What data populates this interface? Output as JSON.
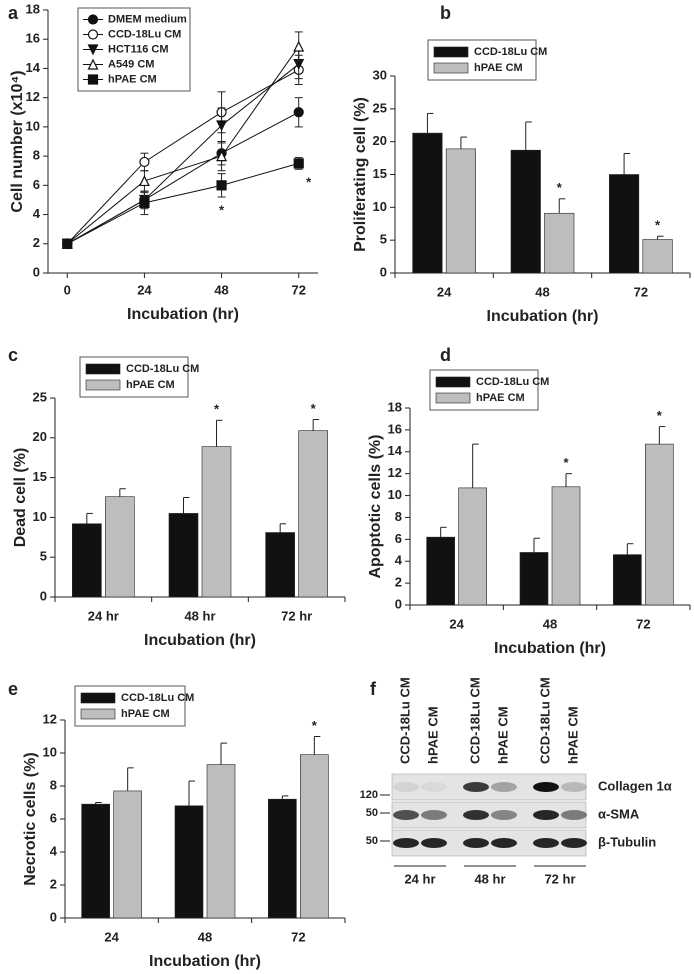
{
  "chart_data": [
    {
      "panel": "a",
      "type": "line",
      "x_label": "Incubation (hr)",
      "y_label": "Cell number (x10⁴)",
      "x": [
        0,
        24,
        48,
        72
      ],
      "xlim": [
        -6,
        78
      ],
      "xticks": [
        0,
        24,
        48,
        72
      ],
      "ylim": [
        0,
        18
      ],
      "yticks": [
        0,
        2,
        4,
        6,
        8,
        10,
        12,
        14,
        16,
        18
      ],
      "series": [
        {
          "name": "DMEM medium",
          "color": "#111111",
          "marker": "circle",
          "values": [
            2,
            5.0,
            8.2,
            11.0
          ],
          "errors": [
            0.2,
            0.5,
            0.8,
            1.0
          ],
          "significance": [
            null,
            null,
            null,
            null
          ]
        },
        {
          "name": "CCD-18Lu CM",
          "color": "#111111",
          "marker": "circle-open",
          "values": [
            2,
            7.6,
            11.0,
            13.9
          ],
          "errors": [
            0.2,
            0.6,
            1.4,
            1.0
          ],
          "significance": [
            null,
            null,
            null,
            null
          ]
        },
        {
          "name": "HCT116 CM",
          "color": "#111111",
          "marker": "triangle-down",
          "values": [
            2,
            5.0,
            10.1,
            14.3
          ],
          "errors": [
            0.2,
            0.6,
            1.2,
            1.0
          ],
          "significance": [
            null,
            null,
            null,
            null
          ]
        },
        {
          "name": "A549 CM",
          "color": "#111111",
          "marker": "triangle-open",
          "values": [
            2,
            6.3,
            8.0,
            15.5
          ],
          "errors": [
            0.2,
            0.7,
            1.0,
            1.0
          ],
          "significance": [
            null,
            null,
            null,
            null
          ]
        },
        {
          "name": "hPAE CM",
          "color": "#111111",
          "marker": "square",
          "values": [
            2,
            4.8,
            6.0,
            7.5
          ],
          "errors": [
            0.2,
            0.8,
            0.8,
            0.4
          ],
          "significance": [
            null,
            null,
            "*",
            "*"
          ]
        }
      ]
    },
    {
      "panel": "b",
      "type": "bar",
      "x_label": "Incubation (hr)",
      "y_label": "Proliferating cell (%)",
      "categories": [
        "24",
        "48",
        "72"
      ],
      "ylim": [
        0,
        30
      ],
      "yticks": [
        0,
        5,
        10,
        15,
        20,
        25,
        30
      ],
      "series": [
        {
          "name": "CCD-18Lu CM",
          "color": "#111111",
          "values": [
            21.3,
            18.7,
            15.0
          ],
          "errors": [
            3.0,
            4.3,
            3.2
          ],
          "significance": [
            null,
            null,
            null
          ]
        },
        {
          "name": "hPAE CM",
          "color": "#bdbdbd",
          "values": [
            18.9,
            9.1,
            5.1
          ],
          "errors": [
            1.8,
            2.2,
            0.5
          ],
          "significance": [
            null,
            "*",
            "*"
          ]
        }
      ]
    },
    {
      "panel": "c",
      "type": "bar",
      "x_label": "Incubation (hr)",
      "y_label": "Dead cell (%)",
      "categories": [
        "24 hr",
        "48 hr",
        "72 hr"
      ],
      "ylim": [
        0,
        25
      ],
      "yticks": [
        0,
        5,
        10,
        15,
        20,
        25
      ],
      "series": [
        {
          "name": "CCD-18Lu CM",
          "color": "#111111",
          "values": [
            9.2,
            10.5,
            8.1
          ],
          "errors": [
            1.3,
            2.0,
            1.1
          ],
          "significance": [
            null,
            null,
            null
          ]
        },
        {
          "name": "hPAE CM",
          "color": "#bdbdbd",
          "values": [
            12.6,
            18.9,
            20.9
          ],
          "errors": [
            1.0,
            3.3,
            1.4
          ],
          "significance": [
            null,
            "*",
            "*"
          ]
        }
      ]
    },
    {
      "panel": "d",
      "type": "bar",
      "x_label": "Incubation (hr)",
      "y_label": "Apoptotic cells (%)",
      "categories": [
        "24",
        "48",
        "72"
      ],
      "ylim": [
        0,
        18
      ],
      "yticks": [
        0,
        2,
        4,
        6,
        8,
        10,
        12,
        14,
        16,
        18
      ],
      "series": [
        {
          "name": "CCD-18Lu CM",
          "color": "#111111",
          "values": [
            6.2,
            4.8,
            4.6
          ],
          "errors": [
            0.9,
            1.3,
            1.0
          ],
          "significance": [
            null,
            null,
            null
          ]
        },
        {
          "name": "hPAE CM",
          "color": "#bdbdbd",
          "values": [
            10.7,
            10.8,
            14.7
          ],
          "errors": [
            4.0,
            1.2,
            1.6
          ],
          "significance": [
            null,
            "*",
            "*"
          ]
        }
      ]
    },
    {
      "panel": "e",
      "type": "bar",
      "x_label": "Incubation (hr)",
      "y_label": "Necrotic cells (%)",
      "categories": [
        "24",
        "48",
        "72"
      ],
      "ylim": [
        0,
        12
      ],
      "yticks": [
        0,
        2,
        4,
        6,
        8,
        10,
        12
      ],
      "series": [
        {
          "name": "CCD-18Lu CM",
          "color": "#111111",
          "values": [
            6.9,
            6.8,
            7.2
          ],
          "errors": [
            0.1,
            1.5,
            0.2
          ],
          "significance": [
            null,
            null,
            null
          ]
        },
        {
          "name": "hPAE CM",
          "color": "#bdbdbd",
          "values": [
            7.7,
            9.3,
            9.9
          ],
          "errors": [
            1.4,
            1.3,
            1.1
          ],
          "significance": [
            null,
            null,
            "*"
          ]
        }
      ]
    }
  ],
  "blot": {
    "panel": "f",
    "lanes": [
      "CCD-18Lu CM",
      "hPAE CM",
      "CCD-18Lu CM",
      "hPAE CM",
      "CCD-18Lu CM",
      "hPAE CM"
    ],
    "rows": [
      {
        "label": "Collagen 1α",
        "marker": "120"
      },
      {
        "label": "α-SMA",
        "marker": "50"
      },
      {
        "label": "β-Tubulin",
        "marker": "50"
      }
    ],
    "times": [
      "24 hr",
      "48 hr",
      "72 hr"
    ]
  }
}
